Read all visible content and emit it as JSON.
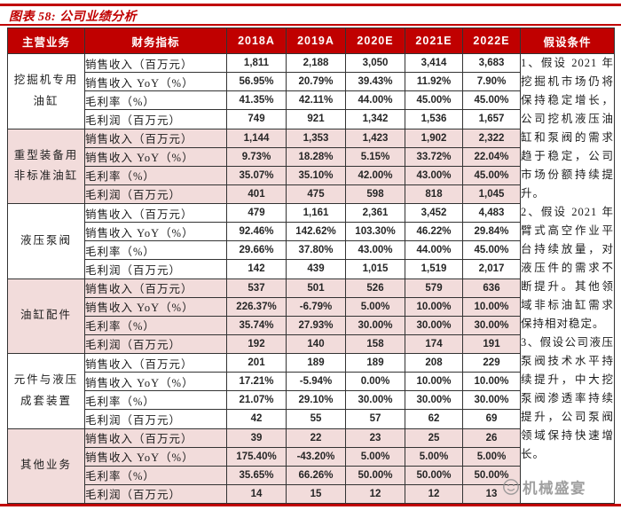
{
  "title": "图表 58: 公司业绩分析",
  "colors": {
    "accent_red": "#c00000",
    "header_bg": "#c00000",
    "header_text": "#ffffff",
    "shaded_row_pink": "#f2dcdb",
    "border": "#333333",
    "watermark_gray": "#8f8f8f"
  },
  "table": {
    "headers": [
      "主营业务",
      "财务指标",
      "2018A",
      "2019A",
      "2020E",
      "2021E",
      "2022E",
      "假设条件"
    ],
    "indicators": [
      "销售收入（百万元）",
      "销售收入 YoY（%）",
      "毛利率（%）",
      "毛利润（百万元）"
    ],
    "segments": [
      {
        "name": "挖掘机专用油缸",
        "shade": false,
        "values": [
          [
            "1,811",
            "2,188",
            "3,050",
            "3,414",
            "3,683"
          ],
          [
            "56.95%",
            "20.79%",
            "39.43%",
            "11.92%",
            "7.90%"
          ],
          [
            "41.35%",
            "42.11%",
            "44.00%",
            "45.00%",
            "45.00%"
          ],
          [
            "749",
            "921",
            "1,342",
            "1,536",
            "1,657"
          ]
        ]
      },
      {
        "name": "重型装备用非标准油缸",
        "shade": true,
        "values": [
          [
            "1,144",
            "1,353",
            "1,423",
            "1,902",
            "2,322"
          ],
          [
            "9.73%",
            "18.28%",
            "5.15%",
            "33.72%",
            "22.04%"
          ],
          [
            "35.07%",
            "35.10%",
            "42.00%",
            "43.00%",
            "45.00%"
          ],
          [
            "401",
            "475",
            "598",
            "818",
            "1,045"
          ]
        ]
      },
      {
        "name": "液压泵阀",
        "shade": false,
        "values": [
          [
            "479",
            "1,161",
            "2,361",
            "3,452",
            "4,483"
          ],
          [
            "92.46%",
            "142.62%",
            "103.30%",
            "46.22%",
            "29.84%"
          ],
          [
            "29.66%",
            "37.80%",
            "43.00%",
            "44.00%",
            "45.00%"
          ],
          [
            "142",
            "439",
            "1,015",
            "1,519",
            "2,017"
          ]
        ]
      },
      {
        "name": "油缸配件",
        "shade": true,
        "values": [
          [
            "537",
            "501",
            "526",
            "579",
            "636"
          ],
          [
            "226.37%",
            "-6.79%",
            "5.00%",
            "10.00%",
            "10.00%"
          ],
          [
            "35.74%",
            "27.93%",
            "30.00%",
            "30.00%",
            "30.00%"
          ],
          [
            "192",
            "140",
            "158",
            "174",
            "191"
          ]
        ]
      },
      {
        "name": "元件与液压成套装置",
        "shade": false,
        "values": [
          [
            "201",
            "189",
            "189",
            "208",
            "229"
          ],
          [
            "17.21%",
            "-5.94%",
            "0.00%",
            "10.00%",
            "10.00%"
          ],
          [
            "21.07%",
            "29.10%",
            "30.00%",
            "30.00%",
            "30.00%"
          ],
          [
            "42",
            "55",
            "57",
            "62",
            "69"
          ]
        ]
      },
      {
        "name": "其他业务",
        "shade": true,
        "values": [
          [
            "39",
            "22",
            "23",
            "25",
            "26"
          ],
          [
            "175.40%",
            "-43.20%",
            "5.00%",
            "5.00%",
            "5.00%"
          ],
          [
            "35.65%",
            "66.26%",
            "50.00%",
            "50.00%",
            "50.00%"
          ],
          [
            "14",
            "15",
            "12",
            "12",
            "13"
          ]
        ]
      }
    ],
    "assumptions": [
      "1、假设 2021 年挖掘机市场仍将保持稳定增长，公司挖机液压油缸和泵阀的需求趋于稳定，公司市场份额持续提升。",
      "2、假设 2021 年臂式高空作业平台持续放量，对液压件的需求不断提升。其他领域非标油缸需求保持相对稳定。",
      "3、假设公司液压泵阀技术水平持续提升，中大挖泵阀渗透率持续提升，公司泵阀领域保持快速增长。"
    ]
  },
  "watermark": {
    "text": "机械盛宴"
  }
}
